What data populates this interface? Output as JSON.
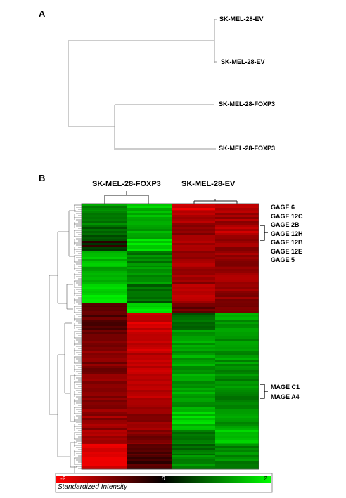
{
  "panel_a": {
    "letter": "A",
    "leaves": [
      "SK-MEL-28-EV",
      "SK-MEL-28-EV",
      "SK-MEL-28-FOXP3",
      "SK-MEL-28-FOXP3"
    ]
  },
  "panel_b": {
    "letter": "B",
    "group_left": "SK-MEL-28-FOXP3",
    "group_right": "SK-MEL-28-EV",
    "gage_genes": [
      "GAGE 6",
      "GAGE 12C",
      "GAGE 2B",
      "GAGE 12H",
      "GAGE 12B",
      "GAGE 12E",
      "GAGE 5"
    ],
    "mage_genes": [
      "MAGE C1",
      "MAGE A4"
    ],
    "colors": {
      "low": "#ff0000",
      "mid": "#000000",
      "high": "#00ff00"
    },
    "scale": {
      "min": "-2",
      "mid": "0",
      "max": "2",
      "caption": "Standardized Intensity"
    }
  }
}
